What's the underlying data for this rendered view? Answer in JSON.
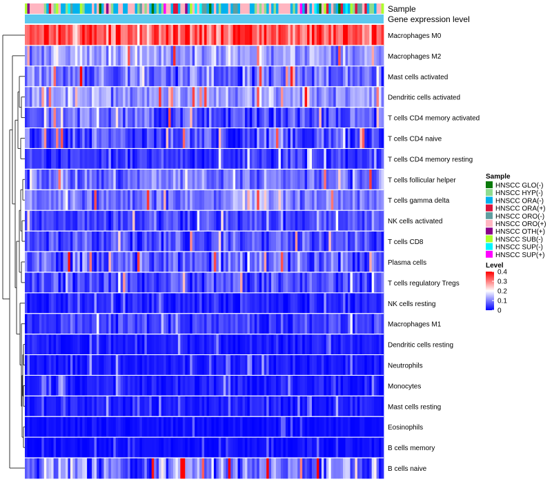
{
  "chart_data": {
    "type": "heatmap",
    "title": "",
    "annotation_tracks": [
      "Sample",
      "Gene expression level"
    ],
    "rows": [
      "Macrophages M0",
      "Macrophages M2",
      "Mast cells activated",
      "Dendritic cells activated",
      "T cells CD4 memory activated",
      "T cells CD4 naive",
      "T cells CD4 memory resting",
      "T cells follicular helper",
      "T cells gamma delta",
      "NK cells activated",
      "T cells CD8",
      "Plasma cells",
      "T cells regulatory  Tregs",
      "NK cells resting",
      "Macrophages M1",
      "Dendritic cells resting",
      "Neutrophils",
      "Monocytes",
      "Mast cells resting",
      "Eosinophils",
      "B cells memory",
      "B cells naive"
    ],
    "row_mean_level": [
      0.32,
      0.12,
      0.08,
      0.12,
      0.07,
      0.06,
      0.04,
      0.09,
      0.1,
      0.05,
      0.06,
      0.08,
      0.06,
      0.03,
      0.05,
      0.02,
      0.02,
      0.02,
      0.02,
      0.01,
      0.01,
      0.1
    ],
    "row_spread": [
      0.1,
      0.08,
      0.08,
      0.07,
      0.07,
      0.08,
      0.05,
      0.07,
      0.07,
      0.05,
      0.06,
      0.08,
      0.06,
      0.04,
      0.05,
      0.03,
      0.03,
      0.03,
      0.03,
      0.02,
      0.02,
      0.12
    ],
    "n_samples": 150,
    "legend_sample": {
      "title": "Sample",
      "entries": [
        {
          "label": "HNSCC GLO(-)",
          "color": "#0a7a0a"
        },
        {
          "label": "HNSCC HYP(-)",
          "color": "#8fdc8f"
        },
        {
          "label": "HNSCC ORA(-)",
          "color": "#00b2ee"
        },
        {
          "label": "HNSCC ORA(+)",
          "color": "#dc143c"
        },
        {
          "label": "HNSCC ORO(-)",
          "color": "#5f9ea0"
        },
        {
          "label": "HNSCC ORO(+)",
          "color": "#ffb6c1"
        },
        {
          "label": "HNSCC OTH(+)",
          "color": "#8b008b"
        },
        {
          "label": "HNSCC SUB(-)",
          "color": "#adff2f"
        },
        {
          "label": "HNSCC SUP(-)",
          "color": "#00f5ff"
        },
        {
          "label": "HNSCC SUP(+)",
          "color": "#ff00ff"
        }
      ]
    },
    "legend_level": {
      "title": "Level",
      "ticks": [
        "0.4",
        "0.3",
        "0.2",
        "0.1",
        "0"
      ],
      "range": [
        0,
        0.4
      ],
      "colors": {
        "low": "#0000ff",
        "mid": "#ffffff",
        "high": "#ff0000"
      }
    },
    "expression_track_color": "#5cc8ee"
  }
}
